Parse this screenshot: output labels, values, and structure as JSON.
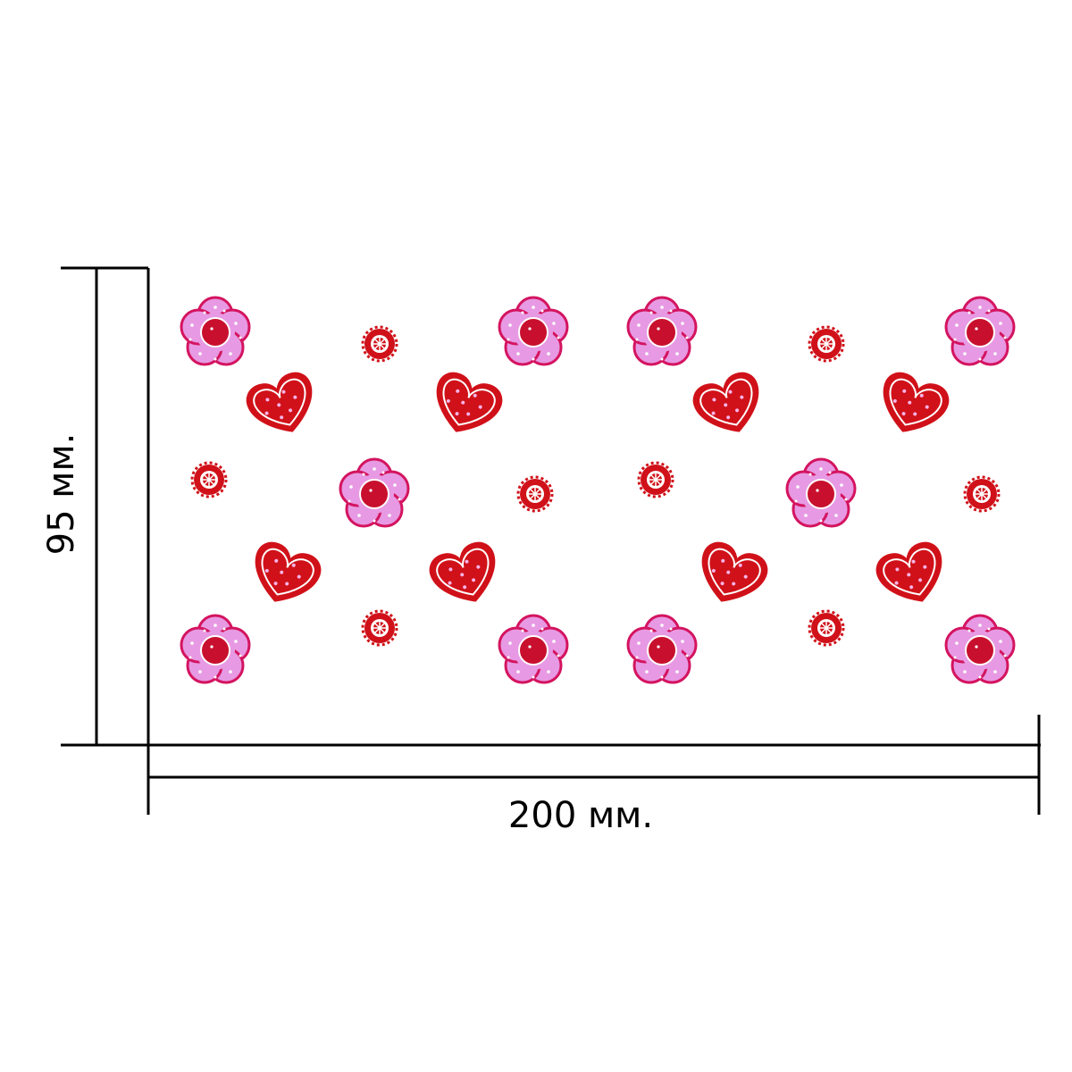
{
  "dimensions": {
    "height_label": "95 мм.",
    "width_label": "200 мм."
  },
  "colors": {
    "heart_red": "#d01119",
    "flower_pink": "#e79ae3",
    "flower_edge": "#d4145f",
    "flower_center": "#c8102e",
    "small_flower_red": "#d01119",
    "dimension_line": "#000000"
  },
  "pattern": {
    "motif_types": [
      "pink-flower",
      "red-heart",
      "small-red-flower"
    ],
    "repeat_count": 2
  }
}
